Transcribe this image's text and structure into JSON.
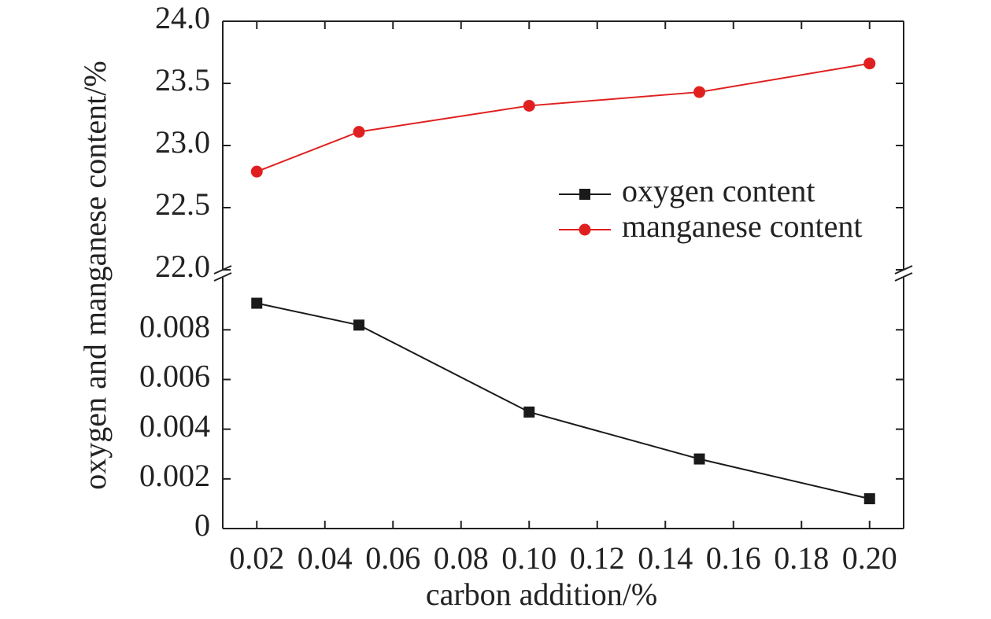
{
  "chart_data": [
    {
      "type": "line",
      "ylabel": "oxygen and manganese content/%",
      "x": [
        0.02,
        0.05,
        0.1,
        0.15,
        0.2
      ],
      "series": [
        {
          "name": "manganese content",
          "color": "#e02020",
          "marker": "circle",
          "values": [
            22.79,
            23.11,
            23.32,
            23.43,
            23.66
          ]
        }
      ],
      "xlim": [
        0.01,
        0.21
      ],
      "ylim": [
        22.0,
        24.0
      ],
      "yticks": [
        {
          "value": 22,
          "label": "22.0"
        },
        {
          "value": 22.5,
          "label": "22.5"
        },
        {
          "value": 23,
          "label": "23.0"
        },
        {
          "value": 23.5,
          "label": "23.5"
        },
        {
          "value": 24,
          "label": "24.0"
        }
      ]
    },
    {
      "type": "line",
      "xlabel": "carbon addition/%",
      "x": [
        0.02,
        0.05,
        0.1,
        0.15,
        0.2
      ],
      "series": [
        {
          "name": "oxygen content",
          "color": "#1a1a1a",
          "marker": "square",
          "values": [
            0.00907,
            0.00819,
            0.00469,
            0.0028,
            0.0012
          ]
        }
      ],
      "xlim": [
        0.01,
        0.21
      ],
      "ylim": [
        0,
        0.0101
      ],
      "yticks": [
        0,
        0.002,
        0.004,
        0.006,
        0.008
      ],
      "xticks": [
        0.02,
        0.04,
        0.06,
        0.08,
        {
          "value": 0.1,
          "label": "0.10"
        },
        0.12,
        0.14,
        0.16,
        0.18,
        {
          "value": 0.2,
          "label": "0.20"
        }
      ]
    }
  ]
}
